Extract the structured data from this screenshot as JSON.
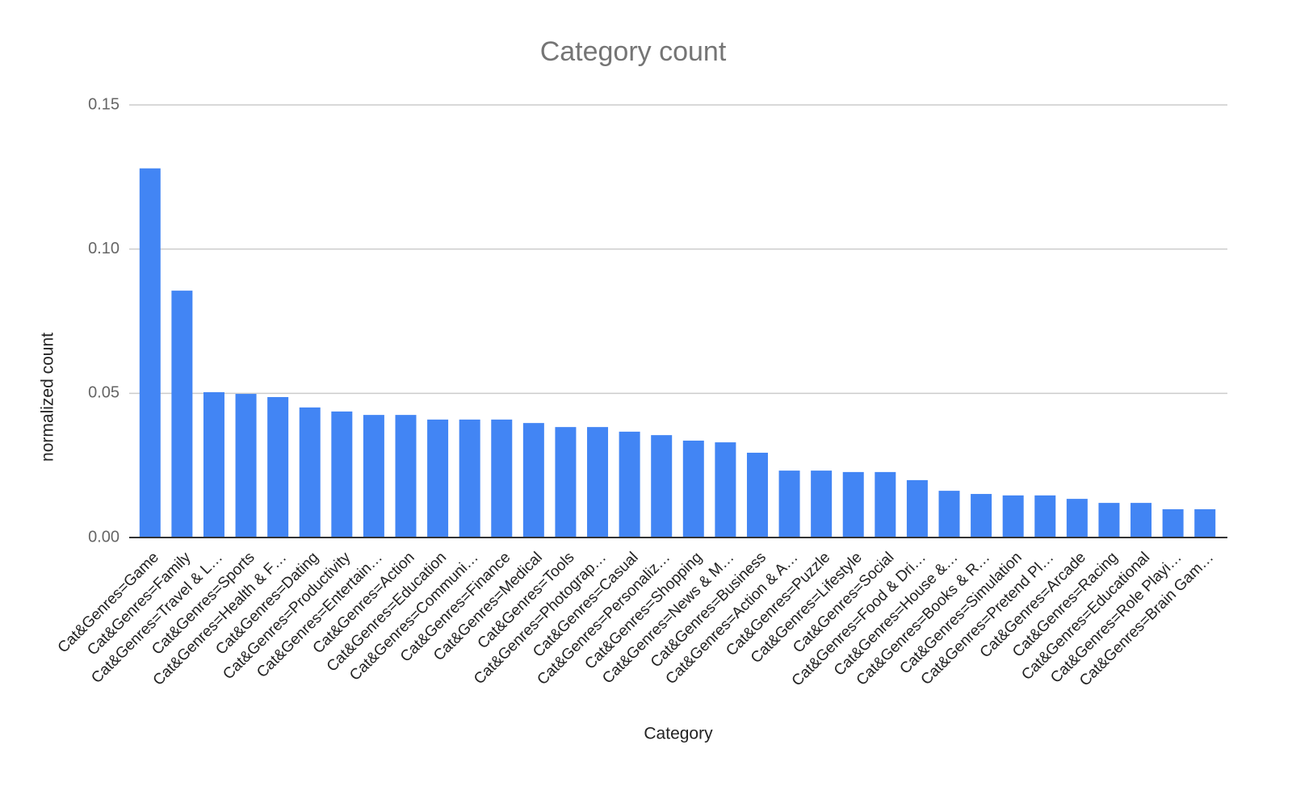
{
  "chart_data": {
    "type": "bar",
    "title": "Category count",
    "x_label": "Category",
    "y_label": "normalized count",
    "categories": [
      "Cat&Genres=Game",
      "Cat&Genres=Family",
      "Cat&Genres=Travel & L…",
      "Cat&Genres=Sports",
      "Cat&Genres=Health & F…",
      "Cat&Genres=Dating",
      "Cat&Genres=Productivity",
      "Cat&Genres=Entertain…",
      "Cat&Genres=Action",
      "Cat&Genres=Education",
      "Cat&Genres=Communi…",
      "Cat&Genres=Finance",
      "Cat&Genres=Medical",
      "Cat&Genres=Tools",
      "Cat&Genres=Photograp…",
      "Cat&Genres=Casual",
      "Cat&Genres=Personaliz…",
      "Cat&Genres=Shopping",
      "Cat&Genres=News & M…",
      "Cat&Genres=Business",
      "Cat&Genres=Action & A…",
      "Cat&Genres=Puzzle",
      "Cat&Genres=Lifestyle",
      "Cat&Genres=Social",
      "Cat&Genres=Food & Dri…",
      "Cat&Genres=House &…",
      "Cat&Genres=Books & R…",
      "Cat&Genres=Simulation",
      "Cat&Genres=Pretend Pl…",
      "Cat&Genres=Arcade",
      "Cat&Genres=Racing",
      "Cat&Genres=Educational",
      "Cat&Genres=Role Playi…",
      "Cat&Genres=Brain Gam…"
    ],
    "values": [
      0.128,
      0.0856,
      0.0504,
      0.0498,
      0.0487,
      0.0451,
      0.0437,
      0.0425,
      0.0425,
      0.0409,
      0.0409,
      0.0409,
      0.0397,
      0.0383,
      0.0383,
      0.0367,
      0.0355,
      0.0336,
      0.033,
      0.0294,
      0.0232,
      0.0232,
      0.0227,
      0.0227,
      0.0199,
      0.0162,
      0.0151,
      0.0146,
      0.0146,
      0.0134,
      0.012,
      0.012,
      0.0098,
      0.0098
    ],
    "color": "#4285f4",
    "ylim": [
      0,
      0.15
    ],
    "yticks": [
      {
        "value": 0,
        "label": "0.00"
      },
      {
        "value": 0.05,
        "label": "0.05"
      },
      {
        "value": 0.1,
        "label": "0.10"
      },
      {
        "value": 0.15,
        "label": "0.15"
      }
    ],
    "grid": true
  }
}
